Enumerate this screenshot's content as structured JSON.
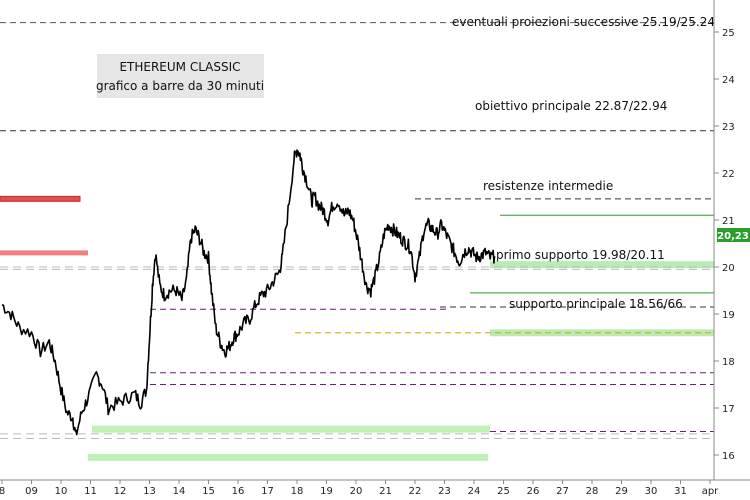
{
  "chart_data": {
    "type": "line",
    "title_lines": [
      "ETHEREUM CLASSIC",
      "grafico a barre da 30 minuti"
    ],
    "xlabel": "",
    "ylabel": "",
    "ylim": [
      15.8,
      25.3
    ],
    "yticks": [
      16,
      17,
      18,
      19,
      20,
      21,
      22,
      23,
      24,
      25
    ],
    "x_ticks": [
      "8",
      "09",
      "10",
      "11",
      "12",
      "13",
      "14",
      "15",
      "16",
      "17",
      "18",
      "19",
      "20",
      "21",
      "22",
      "23",
      "24",
      "25",
      "26",
      "27",
      "28",
      "29",
      "30",
      "31",
      "apr"
    ],
    "last_price": "20,23",
    "series": [
      {
        "x": [
          8.0,
          8.3,
          8.6,
          9.0,
          9.3,
          9.6,
          9.8,
          10.0,
          10.2,
          10.4,
          10.5,
          10.7,
          10.9,
          11.2,
          11.4,
          11.6,
          11.9,
          12.2,
          12.5,
          12.7,
          12.9,
          13.0,
          13.1,
          13.2,
          13.35,
          13.5,
          13.7,
          13.9,
          14.1,
          14.25,
          14.4,
          14.55,
          14.7,
          14.85,
          15.0,
          15.1,
          15.25,
          15.4,
          15.55,
          15.7,
          15.85,
          16.0,
          16.2,
          16.4,
          16.6,
          16.8,
          17.0,
          17.2,
          17.4,
          17.5,
          17.7,
          17.9,
          18.0,
          18.1,
          18.2,
          18.35,
          18.5,
          18.6,
          18.75,
          18.9,
          19.05,
          19.2,
          19.4,
          19.6,
          19.75,
          19.9,
          20.05,
          20.2,
          20.35,
          20.5,
          20.65,
          20.8,
          20.95,
          21.1,
          21.25,
          21.4,
          21.55,
          21.7,
          21.85,
          22.0,
          22.15,
          22.3,
          22.45,
          22.6,
          22.75,
          22.9,
          23.05,
          23.2,
          23.35,
          23.5,
          23.65,
          23.8,
          23.95,
          24.1,
          24.25,
          24.4,
          24.55,
          24.7
        ],
        "values": [
          19.2,
          19.0,
          18.7,
          18.6,
          18.2,
          18.4,
          18.0,
          17.4,
          16.9,
          16.8,
          16.4,
          16.9,
          17.2,
          17.7,
          17.5,
          17.0,
          17.1,
          17.2,
          17.3,
          17.1,
          17.4,
          18.5,
          19.6,
          20.3,
          19.6,
          19.4,
          19.5,
          19.5,
          19.3,
          19.7,
          20.6,
          20.8,
          20.6,
          20.3,
          20.2,
          19.5,
          18.7,
          18.4,
          18.2,
          18.3,
          18.5,
          18.6,
          18.8,
          18.9,
          19.2,
          19.4,
          19.5,
          19.7,
          19.9,
          20.2,
          21.2,
          22.3,
          22.5,
          22.4,
          22.1,
          21.8,
          21.4,
          21.5,
          21.3,
          21.2,
          21.0,
          21.3,
          21.4,
          21.1,
          21.2,
          21.0,
          20.6,
          20.1,
          19.6,
          19.5,
          19.8,
          20.2,
          20.7,
          20.9,
          20.8,
          20.7,
          20.6,
          20.5,
          20.4,
          19.8,
          20.2,
          20.8,
          20.9,
          20.8,
          20.7,
          20.9,
          20.7,
          20.5,
          20.3,
          20.1,
          20.3,
          20.4,
          20.3,
          20.2,
          20.25,
          20.3,
          20.2,
          20.23
        ]
      }
    ]
  },
  "annotations": {
    "projections": "eventuali proiezioni successive 25.19/25.24",
    "main_target": "obiettivo principale 22.87/22.94",
    "intermediate_resistance": "resistenze intermedie",
    "first_support": "primo supporto 19.98/20.11",
    "main_support": "supporto principale 18.56/66"
  },
  "levels": [
    {
      "y": 25.2,
      "style": "dash",
      "color": "#555555"
    },
    {
      "y": 22.9,
      "style": "dash",
      "color": "#333333"
    },
    {
      "y": 21.45,
      "style": "dash",
      "color": "#333333"
    },
    {
      "y": 21.1,
      "style": "solid",
      "color": "#2e9d2e"
    },
    {
      "y": 20.05,
      "style": "band",
      "color": "#b8ecb2"
    },
    {
      "y": 19.45,
      "style": "solid",
      "color": "#2e9d2e"
    },
    {
      "y": 19.1,
      "style": "dash",
      "color": "#6a1e7a"
    },
    {
      "y": 19.15,
      "style": "dash",
      "color": "#333333"
    },
    {
      "y": 18.6,
      "style": "band",
      "color": "#b8ecb2"
    },
    {
      "y": 18.6,
      "style": "dash",
      "color": "#e0a000"
    },
    {
      "y": 17.75,
      "style": "dash",
      "color": "#6a1e7a"
    },
    {
      "y": 17.5,
      "style": "dash",
      "color": "#6a1e7a"
    },
    {
      "y": 16.5,
      "style": "dash",
      "color": "#6a1e7a"
    },
    {
      "y": 16.55,
      "style": "band",
      "color": "#c0f0b8"
    },
    {
      "y": 15.95,
      "style": "band",
      "color": "#c0f0b8"
    },
    {
      "y": 21.45,
      "style": "band",
      "color": "#e05050"
    },
    {
      "y": 20.3,
      "style": "band",
      "color": "#f08080"
    }
  ],
  "colors": {
    "series": "#000000",
    "price_tag": "#2a9d2a",
    "title_box": "#e6e6e6"
  }
}
